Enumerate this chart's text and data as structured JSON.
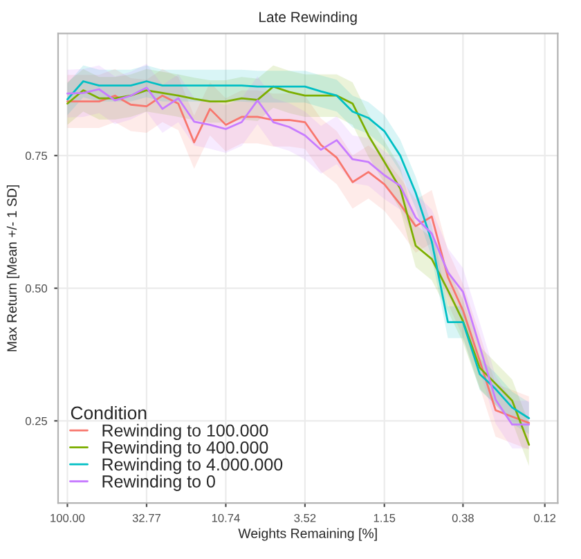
{
  "chart_data": {
    "type": "line",
    "title": "Late Rewinding",
    "xlabel": "Weights Remaining [%]",
    "ylabel": "Max Return [Mean +/- 1 SD]",
    "legend_title": "Condition",
    "legend": "bottom left",
    "grid": true,
    "log": "x",
    "xlim": [
      114,
      0.1
    ],
    "ylim": [
      0.095,
      0.98
    ],
    "xticks": [
      {
        "value": 100,
        "label": "100.00"
      },
      32.77,
      10.74,
      3.52,
      1.15,
      0.38,
      0.12
    ],
    "yticks": [
      0.25,
      {
        "value": 0.5,
        "label": "0.50"
      },
      0.75
    ],
    "x": [
      100,
      80,
      64,
      51.2,
      40.96,
      32.77,
      26.21,
      20.97,
      16.78,
      13.42,
      10.74,
      8.59,
      6.87,
      5.5,
      4.4,
      3.52,
      2.81,
      2.25,
      1.8,
      1.44,
      1.15,
      0.92,
      0.74,
      0.59,
      0.47,
      0.38,
      0.3,
      0.24,
      0.19,
      0.15
    ],
    "series": [
      {
        "name": "Rewinding to 100.000",
        "color": "#f8766d",
        "values": [
          0.852,
          0.852,
          0.852,
          0.863,
          0.846,
          0.843,
          0.863,
          0.848,
          0.775,
          0.838,
          0.808,
          0.823,
          0.823,
          0.817,
          0.817,
          0.813,
          0.77,
          0.746,
          0.7,
          0.719,
          0.696,
          0.658,
          0.617,
          0.635,
          0.521,
          0.458,
          0.363,
          0.27,
          0.258,
          0.246
        ],
        "lower": [
          0.802,
          0.802,
          0.802,
          0.813,
          0.796,
          0.793,
          0.813,
          0.798,
          0.725,
          0.788,
          0.758,
          0.773,
          0.773,
          0.767,
          0.767,
          0.763,
          0.72,
          0.696,
          0.65,
          0.669,
          0.646,
          0.608,
          0.567,
          0.585,
          0.471,
          0.408,
          0.313,
          0.22,
          0.208,
          0.196
        ],
        "upper": [
          0.902,
          0.902,
          0.902,
          0.913,
          0.896,
          0.893,
          0.913,
          0.898,
          0.825,
          0.888,
          0.858,
          0.873,
          0.873,
          0.867,
          0.867,
          0.863,
          0.82,
          0.796,
          0.75,
          0.769,
          0.746,
          0.708,
          0.667,
          0.685,
          0.571,
          0.508,
          0.413,
          0.32,
          0.308,
          0.296
        ]
      },
      {
        "name": "Rewinding to 400.000",
        "color": "#7cae00",
        "values": [
          0.848,
          0.873,
          0.858,
          0.858,
          0.863,
          0.873,
          0.868,
          0.863,
          0.857,
          0.852,
          0.852,
          0.858,
          0.855,
          0.88,
          0.87,
          0.863,
          0.863,
          0.863,
          0.848,
          0.788,
          0.738,
          0.688,
          0.58,
          0.555,
          0.496,
          0.438,
          0.35,
          0.32,
          0.288,
          0.205
        ],
        "lower": [
          0.808,
          0.833,
          0.818,
          0.818,
          0.823,
          0.833,
          0.828,
          0.823,
          0.817,
          0.812,
          0.812,
          0.818,
          0.815,
          0.84,
          0.83,
          0.823,
          0.823,
          0.823,
          0.808,
          0.748,
          0.698,
          0.648,
          0.54,
          0.515,
          0.456,
          0.398,
          0.31,
          0.28,
          0.248,
          0.165
        ],
        "upper": [
          0.888,
          0.913,
          0.898,
          0.898,
          0.903,
          0.913,
          0.908,
          0.903,
          0.897,
          0.892,
          0.892,
          0.898,
          0.895,
          0.92,
          0.91,
          0.903,
          0.903,
          0.903,
          0.888,
          0.828,
          0.778,
          0.728,
          0.62,
          0.595,
          0.536,
          0.478,
          0.39,
          0.36,
          0.328,
          0.245
        ]
      },
      {
        "name": "Rewinding to 4.000.000",
        "color": "#00bfc4",
        "values": [
          0.856,
          0.89,
          0.882,
          0.882,
          0.882,
          0.89,
          0.882,
          0.882,
          0.882,
          0.882,
          0.882,
          0.882,
          0.88,
          0.88,
          0.88,
          0.88,
          0.871,
          0.863,
          0.833,
          0.821,
          0.796,
          0.75,
          0.68,
          0.588,
          0.436,
          0.436,
          0.338,
          0.31,
          0.275,
          0.255
        ],
        "lower": [
          0.826,
          0.86,
          0.852,
          0.852,
          0.852,
          0.86,
          0.852,
          0.852,
          0.852,
          0.852,
          0.852,
          0.852,
          0.85,
          0.85,
          0.85,
          0.85,
          0.841,
          0.833,
          0.803,
          0.791,
          0.766,
          0.72,
          0.65,
          0.558,
          0.406,
          0.406,
          0.308,
          0.28,
          0.245,
          0.225
        ],
        "upper": [
          0.886,
          0.92,
          0.912,
          0.912,
          0.912,
          0.92,
          0.912,
          0.912,
          0.912,
          0.912,
          0.912,
          0.912,
          0.91,
          0.91,
          0.91,
          0.91,
          0.901,
          0.893,
          0.863,
          0.851,
          0.826,
          0.78,
          0.71,
          0.618,
          0.466,
          0.466,
          0.368,
          0.34,
          0.305,
          0.285
        ]
      },
      {
        "name": "Rewinding to 0",
        "color": "#c77cff",
        "values": [
          0.867,
          0.868,
          0.875,
          0.854,
          0.863,
          0.878,
          0.838,
          0.858,
          0.814,
          0.808,
          0.8,
          0.813,
          0.854,
          0.813,
          0.804,
          0.788,
          0.761,
          0.779,
          0.743,
          0.738,
          0.713,
          0.693,
          0.633,
          0.603,
          0.53,
          0.493,
          0.39,
          0.29,
          0.243,
          0.243
        ],
        "lower": [
          0.822,
          0.823,
          0.83,
          0.809,
          0.818,
          0.833,
          0.793,
          0.813,
          0.769,
          0.763,
          0.755,
          0.768,
          0.809,
          0.768,
          0.759,
          0.743,
          0.716,
          0.734,
          0.698,
          0.693,
          0.668,
          0.648,
          0.588,
          0.558,
          0.485,
          0.448,
          0.345,
          0.245,
          0.198,
          0.198
        ],
        "upper": [
          0.912,
          0.913,
          0.92,
          0.899,
          0.908,
          0.923,
          0.883,
          0.903,
          0.859,
          0.853,
          0.845,
          0.858,
          0.899,
          0.858,
          0.849,
          0.833,
          0.806,
          0.824,
          0.788,
          0.783,
          0.758,
          0.738,
          0.678,
          0.648,
          0.575,
          0.538,
          0.435,
          0.335,
          0.288,
          0.288
        ]
      }
    ]
  }
}
